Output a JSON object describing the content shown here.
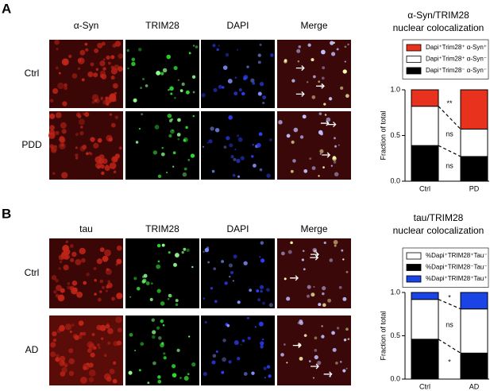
{
  "panels": [
    {
      "label": "A",
      "columns": [
        "α-Syn",
        "TRIM28",
        "DAPI",
        "Merge"
      ],
      "rows": [
        "Ctrl",
        "PDD"
      ]
    },
    {
      "label": "B",
      "columns": [
        "tau",
        "TRIM28",
        "DAPI",
        "Merge"
      ],
      "rows": [
        "Ctrl",
        "AD"
      ]
    }
  ],
  "chart_data": [
    {
      "type": "stacked_bar",
      "title": "α-Syn/TRIM28",
      "subtitle": "nuclear colocalization",
      "y_label": "Fraction of total",
      "categories": [
        "Ctrl",
        "PD"
      ],
      "series": [
        {
          "name": "Dapi⁺Trim28⁺ α-Syn⁺",
          "color": "#e8321e",
          "values": [
            0.18,
            0.43
          ]
        },
        {
          "name": "Dapi⁺Trim28⁺ α-Syn⁻",
          "color": "#ffffff",
          "values": [
            0.43,
            0.3
          ]
        },
        {
          "name": "Dapi⁺Trim28⁻ α-Syn⁻",
          "color": "#000000",
          "values": [
            0.39,
            0.27
          ]
        }
      ],
      "annotations": [
        "**",
        "ns",
        "ns"
      ],
      "ylim": [
        0,
        1
      ],
      "yticks": [
        {
          "value": 0,
          "label": "0.0"
        },
        {
          "value": 0.5,
          "label": "0.5"
        },
        {
          "value": 1,
          "label": "1.0"
        }
      ]
    },
    {
      "type": "stacked_bar",
      "title": "tau/TRIM28",
      "subtitle": "nuclear colocalization",
      "y_label": "Fraction of total",
      "categories": [
        "Ctrl",
        "AD"
      ],
      "series": [
        {
          "name": "%Dapi⁺TRIM28⁺Tau⁻",
          "color": "#ffffff",
          "values": [
            0.46,
            0.51
          ]
        },
        {
          "name": "%Dapi⁺TRIM28⁻Tau⁻",
          "color": "#000000",
          "values": [
            0.46,
            0.3
          ]
        },
        {
          "name": "%Dapi⁺TRIM28⁺Tau⁺",
          "color": "#1a44e6",
          "values": [
            0.08,
            0.19
          ]
        }
      ],
      "annotations": [
        "*",
        "ns",
        "*"
      ],
      "ylim": [
        0,
        1
      ],
      "yticks": [
        {
          "value": 0,
          "label": "0.0"
        },
        {
          "value": 0.5,
          "label": "0.5"
        },
        {
          "value": 1,
          "label": "1.0"
        }
      ]
    }
  ]
}
